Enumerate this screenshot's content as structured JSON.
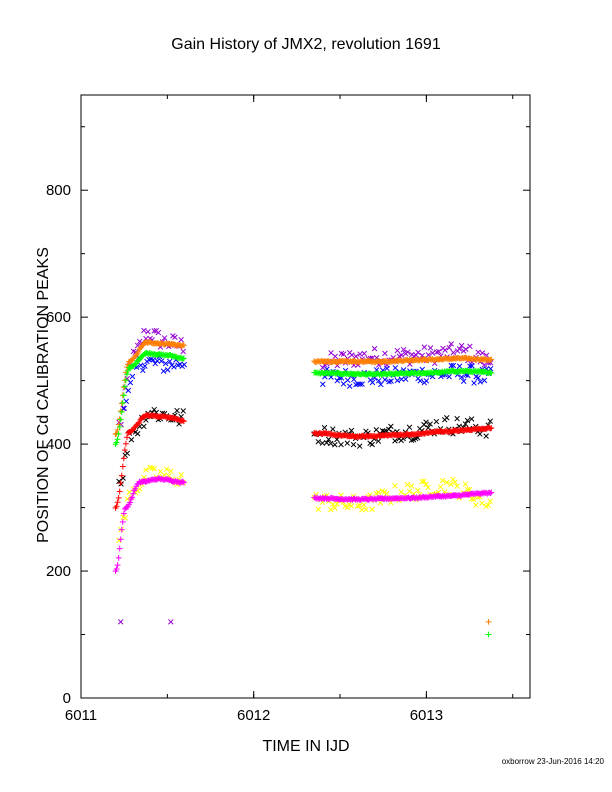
{
  "chart_data": {
    "type": "scatter",
    "title": "Gain History of JMX2, revolution 1691",
    "xlabel": "TIME IN IJD",
    "ylabel": "POSITION OF Cd CALIBRATION PEAKS",
    "xlim": [
      6011.0,
      6013.6
    ],
    "ylim": [
      0,
      950
    ],
    "x_ticks": [
      6011,
      6012,
      6013
    ],
    "y_ticks": [
      0,
      200,
      400,
      600,
      800
    ],
    "grid": false,
    "footer": "oxborrow 23-Jun-2016 14:20",
    "series": [
      {
        "color": "#9400d3",
        "marker": "x",
        "kind": "noisy",
        "x": [
          6011.22,
          6011.3,
          6011.38,
          6011.5,
          6011.6,
          6012.4,
          6012.7,
          6013.0,
          6013.2,
          6013.38
        ],
        "y": [
          430,
          535,
          575,
          560,
          555,
          530,
          538,
          540,
          545,
          530
        ]
      },
      {
        "color": "#0000ff",
        "marker": "x",
        "kind": "noisy",
        "x": [
          6011.25,
          6011.35,
          6011.5,
          6011.6,
          6012.4,
          6012.7,
          6013.0,
          6013.2,
          6013.38
        ],
        "y": [
          470,
          530,
          525,
          530,
          505,
          505,
          510,
          512,
          505
        ]
      },
      {
        "color": "#ff7f00",
        "marker": "+",
        "kind": "fit",
        "x": [
          6011.2,
          6011.28,
          6011.38,
          6011.5,
          6011.6,
          6012.35,
          6012.7,
          6013.0,
          6013.2,
          6013.38
        ],
        "y": [
          415,
          530,
          560,
          558,
          555,
          530,
          530,
          533,
          535,
          533
        ]
      },
      {
        "color": "#00ff00",
        "marker": "+",
        "kind": "fit",
        "x": [
          6011.2,
          6011.28,
          6011.38,
          6011.5,
          6011.6,
          6012.35,
          6012.7,
          6013.0,
          6013.2,
          6013.38
        ],
        "y": [
          400,
          520,
          543,
          540,
          535,
          512,
          510,
          512,
          515,
          513
        ]
      },
      {
        "color": "#000000",
        "marker": "x",
        "kind": "noisy",
        "x": [
          6011.22,
          6011.3,
          6011.4,
          6011.5,
          6011.6,
          6012.35,
          6012.6,
          6012.9,
          6013.1,
          6013.38
        ],
        "y": [
          340,
          420,
          450,
          445,
          440,
          415,
          410,
          420,
          430,
          425
        ]
      },
      {
        "color": "#ff0000",
        "marker": "+",
        "kind": "fit",
        "x": [
          6011.2,
          6011.28,
          6011.38,
          6011.5,
          6011.6,
          6012.35,
          6012.6,
          6012.9,
          6013.1,
          6013.38
        ],
        "y": [
          300,
          420,
          445,
          443,
          437,
          417,
          412,
          415,
          420,
          425
        ]
      },
      {
        "color": "#ffff00",
        "marker": "x",
        "kind": "noisy",
        "x": [
          6011.22,
          6011.3,
          6011.4,
          6011.5,
          6011.6,
          6012.35,
          6012.6,
          6012.9,
          6013.1,
          6013.38
        ],
        "y": [
          260,
          330,
          350,
          350,
          345,
          310,
          305,
          325,
          335,
          310
        ]
      },
      {
        "color": "#ff00ff",
        "marker": "+",
        "kind": "fit",
        "x": [
          6011.2,
          6011.26,
          6011.34,
          6011.45,
          6011.6,
          6012.35,
          6012.6,
          6012.9,
          6013.1,
          6013.38
        ],
        "y": [
          200,
          300,
          340,
          345,
          340,
          315,
          313,
          315,
          318,
          323
        ]
      }
    ],
    "outliers": [
      {
        "color": "#9400d3",
        "marker": "x",
        "x": 6011.23,
        "y": 120
      },
      {
        "color": "#9400d3",
        "marker": "x",
        "x": 6011.52,
        "y": 120
      },
      {
        "color": "#ff7f00",
        "marker": "+",
        "x": 6013.36,
        "y": 120
      },
      {
        "color": "#00ff00",
        "marker": "+",
        "x": 6013.36,
        "y": 100
      }
    ]
  }
}
